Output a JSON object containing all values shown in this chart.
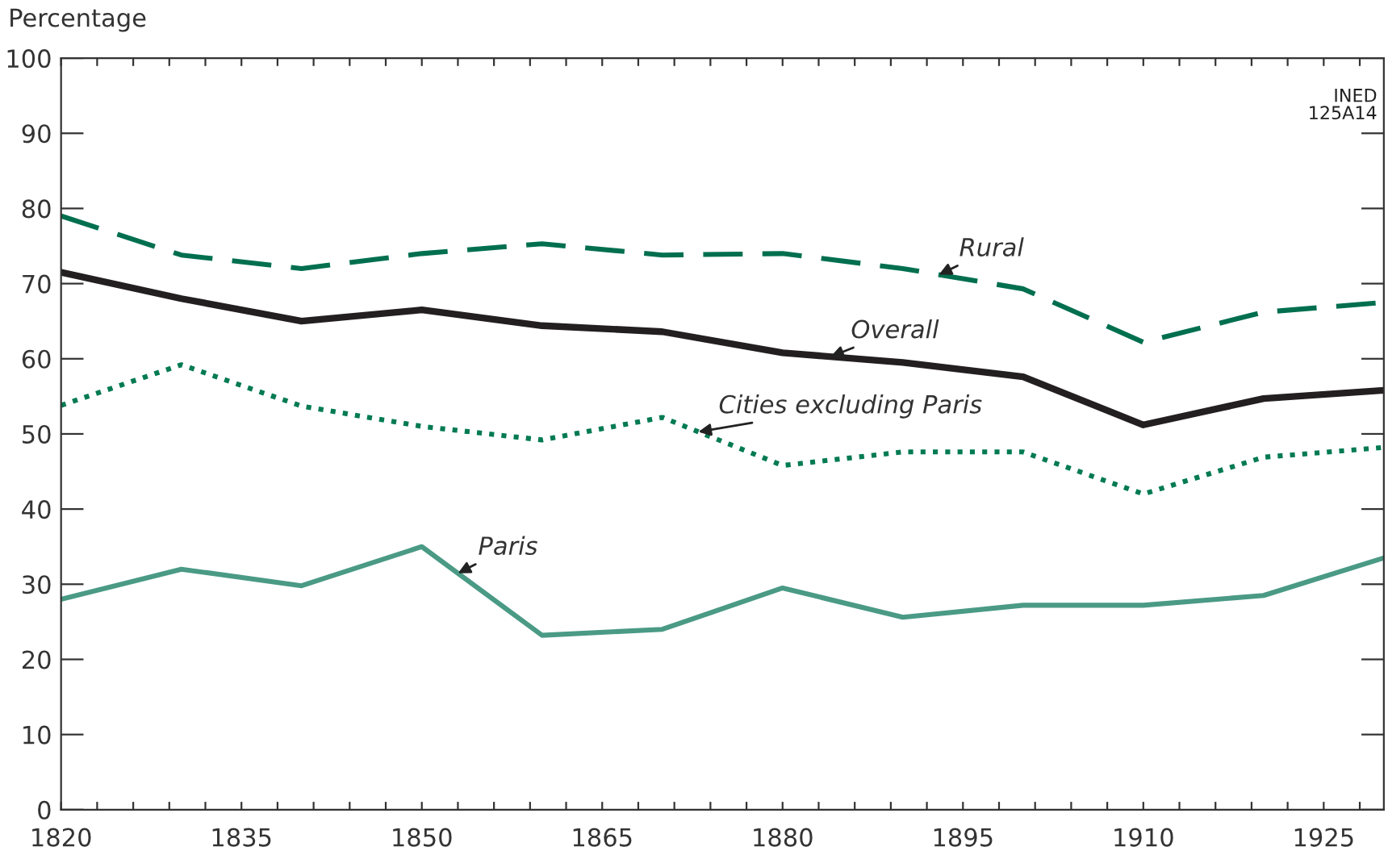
{
  "chart_data": {
    "type": "line",
    "ylabel": "Percentage",
    "x": [
      1820,
      1830,
      1840,
      1850,
      1860,
      1870,
      1880,
      1890,
      1900,
      1910,
      1920,
      1930
    ],
    "series": [
      {
        "name": "Rural",
        "color": "#006f4f",
        "line_style": "dashed",
        "values": [
          79,
          73.8,
          72,
          74,
          75.3,
          73.8,
          74,
          72,
          69.3,
          62.2,
          66.2,
          67.5
        ]
      },
      {
        "name": "Overall",
        "color": "#231f20",
        "line_style": "solid",
        "values": [
          71.5,
          68,
          65,
          66.5,
          64.4,
          63.6,
          60.8,
          59.5,
          57.6,
          51.2,
          54.7,
          55.8
        ]
      },
      {
        "name": "Cities excluding Paris",
        "color": "#007a52",
        "line_style": "dotted",
        "values": [
          53.8,
          59.2,
          53.7,
          51,
          49.2,
          52.2,
          45.8,
          47.6,
          47.6,
          42,
          46.9,
          48.2
        ]
      },
      {
        "name": "Paris",
        "color": "#4a9a85",
        "line_style": "solid",
        "values": [
          28,
          32,
          29.8,
          35,
          23.2,
          24,
          29.5,
          25.6,
          27.2,
          27.2,
          28.5,
          33.5
        ]
      }
    ],
    "annotations": [
      "INED\n125A14"
    ],
    "xlim": [
      1820,
      1930
    ],
    "ylim": [
      0,
      100
    ],
    "xticks": [
      1820,
      {
        "value": 1823,
        "label": null
      },
      {
        "value": 1826,
        "label": null
      },
      {
        "value": 1829,
        "label": null
      },
      {
        "value": 1832,
        "label": null
      },
      1835,
      {
        "value": 1838,
        "label": null
      },
      {
        "value": 1841,
        "label": null
      },
      {
        "value": 1844,
        "label": null
      },
      {
        "value": 1847,
        "label": null
      },
      1850,
      {
        "value": 1853,
        "label": null
      },
      {
        "value": 1856,
        "label": null
      },
      {
        "value": 1859,
        "label": null
      },
      {
        "value": 1862,
        "label": null
      },
      1865,
      {
        "value": 1868,
        "label": null
      },
      {
        "value": 1871,
        "label": null
      },
      {
        "value": 1874,
        "label": null
      },
      {
        "value": 1877,
        "label": null
      },
      1880,
      {
        "value": 1883,
        "label": null
      },
      {
        "value": 1886,
        "label": null
      },
      {
        "value": 1889,
        "label": null
      },
      {
        "value": 1892,
        "label": null
      },
      1895,
      {
        "value": 1898,
        "label": null
      },
      {
        "value": 1901,
        "label": null
      },
      {
        "value": 1904,
        "label": null
      },
      {
        "value": 1907,
        "label": null
      },
      1910,
      {
        "value": 1913,
        "label": null
      },
      {
        "value": 1916,
        "label": null
      },
      {
        "value": 1919,
        "label": null
      },
      {
        "value": 1922,
        "label": null
      },
      1925,
      {
        "value": 1928,
        "label": null
      }
    ],
    "yticks": [
      0,
      10,
      20,
      30,
      40,
      50,
      60,
      70,
      80,
      90,
      100
    ],
    "grid": false,
    "legend": false,
    "marker": "none"
  }
}
